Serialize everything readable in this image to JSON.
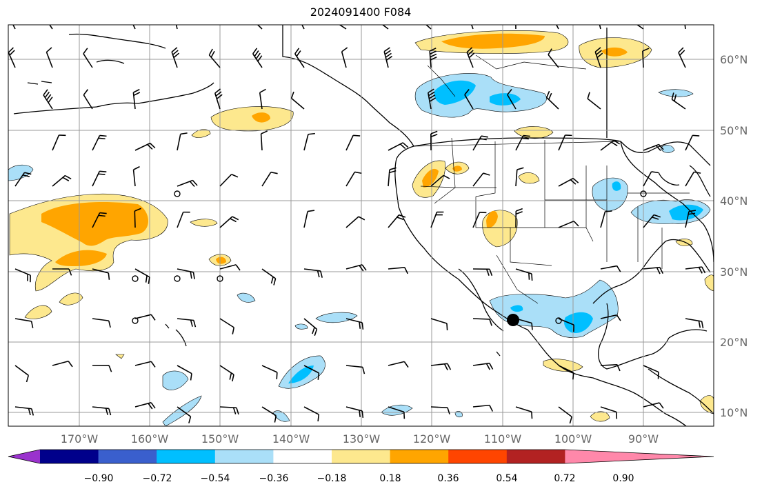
{
  "title": "2024091400 F084",
  "map": {
    "lat_labels": [
      "60°N",
      "50°N",
      "40°N",
      "30°N",
      "20°N",
      "10°N"
    ],
    "lon_labels": [
      "170°W",
      "160°W",
      "150°W",
      "140°W",
      "130°W",
      "120°W",
      "110°W",
      "100°W",
      "90°W"
    ],
    "grid": true,
    "colors": {
      "coast": "#000000",
      "grid": "#999999",
      "light_blue": "#aadff8",
      "blue": "#00bfff",
      "yellow": "#fde88e",
      "orange": "#ffa500"
    }
  },
  "colorbar": {
    "tick_labels": [
      "−0.90",
      "−0.72",
      "−0.54",
      "−0.36",
      "−0.18",
      "0.18",
      "0.36",
      "0.54",
      "0.72",
      "0.90"
    ],
    "colors": [
      "#9a32cd",
      "#00008b",
      "#3a5fcd",
      "#00bfff",
      "#aadff8",
      "#ffffff",
      "#fde88e",
      "#ffa500",
      "#ff4500",
      "#b22222",
      "#ff88aa"
    ]
  }
}
